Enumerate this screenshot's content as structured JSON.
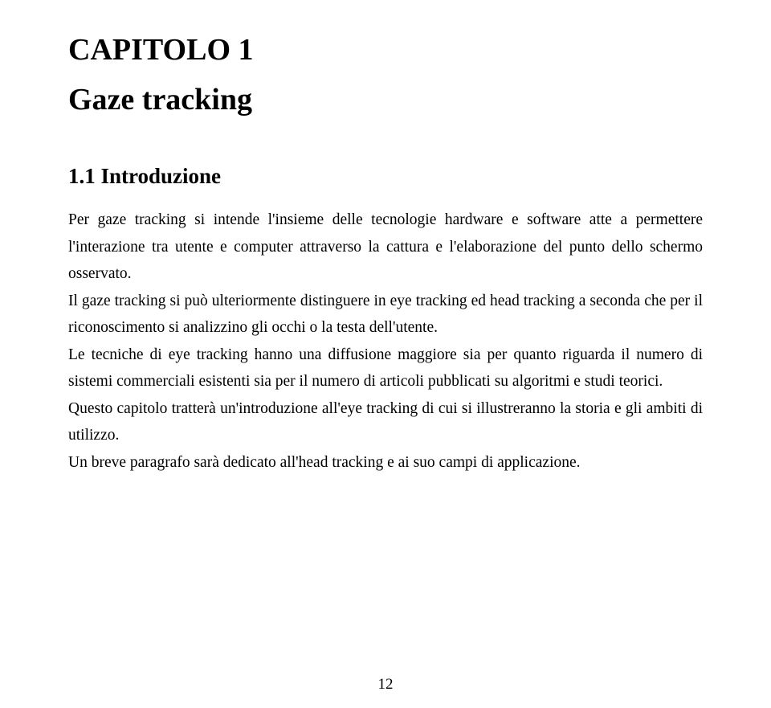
{
  "chapter": {
    "label": "CAPITOLO 1",
    "title": "Gaze tracking"
  },
  "section": {
    "number": "1.1",
    "heading": "1.1 Introduzione"
  },
  "paragraphs": {
    "p1": "Per gaze tracking si intende l'insieme delle tecnologie hardware e software atte a permettere l'interazione tra utente e computer attraverso la cattura e l'elaborazione del punto dello schermo osservato.",
    "p2": "Il gaze tracking si può ulteriormente distinguere in eye tracking ed head tracking a seconda che per il riconoscimento si analizzino gli occhi o la testa dell'utente.",
    "p3": "Le tecniche di eye tracking hanno una diffusione maggiore sia per quanto riguarda il numero di sistemi commerciali esistenti sia per il numero di articoli pubblicati su algoritmi e studi teorici.",
    "p4": "Questo capitolo tratterà un'introduzione all'eye tracking di cui si illustreranno la storia e gli ambiti di utilizzo.",
    "p5": "Un breve paragrafo sarà dedicato all'head tracking e ai suo campi di applicazione."
  },
  "page_number": "12",
  "typography": {
    "heading_fontsize_pt": 28,
    "section_fontsize_pt": 20,
    "body_fontsize_pt": 14,
    "font_family": "Times New Roman",
    "text_color": "#000000",
    "background_color": "#ffffff",
    "line_height": 1.72,
    "text_align": "justify"
  }
}
